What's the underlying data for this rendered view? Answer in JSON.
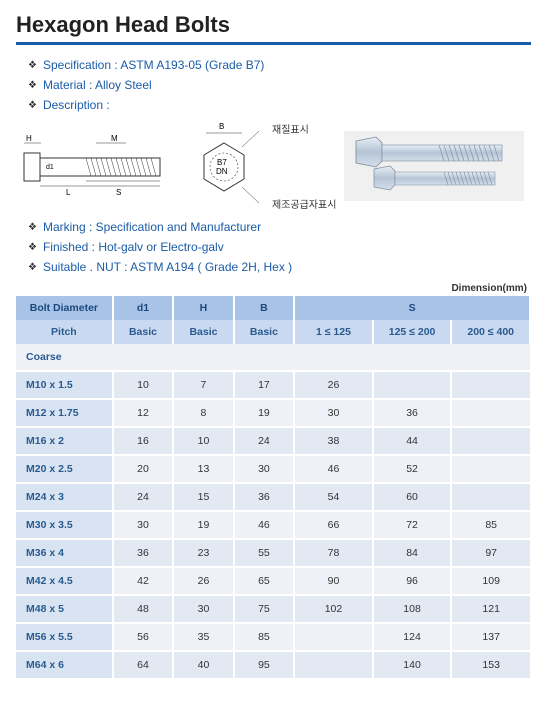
{
  "title": "Hexagon Head Bolts",
  "specs": [
    "Specification : ASTM A193-05 (Grade B7)",
    "Material : Alloy Steel",
    "Description :",
    "Marking : Specification and Manufacturer",
    "Finished : Hot-galv or Electro-galv",
    "Suitable . NUT : ASTM A194 ( Grade 2H, Hex )"
  ],
  "diagram": {
    "labels": {
      "H": "H",
      "M": "M",
      "d1": "d1",
      "L": "L",
      "S": "S",
      "B": "B",
      "B7": "B7",
      "DN": "DN"
    },
    "right1": "재질표시",
    "right2": "제조공급자표시"
  },
  "dimLabel": "Dimension(mm)",
  "table": {
    "header1": [
      "Bolt Diameter",
      "d1",
      "H",
      "B",
      "S"
    ],
    "header2": [
      "Pitch",
      "Basic",
      "Basic",
      "Basic",
      "1 ≤ 125",
      "125 ≤ 200",
      "200 ≤ 400"
    ],
    "coarseLabel": "Coarse",
    "rows": [
      [
        "M10 x 1.5",
        "10",
        "7",
        "17",
        "26",
        "",
        ""
      ],
      [
        "M12 x 1.75",
        "12",
        "8",
        "19",
        "30",
        "36",
        ""
      ],
      [
        "M16 x 2",
        "16",
        "10",
        "24",
        "38",
        "44",
        ""
      ],
      [
        "M20 x 2.5",
        "20",
        "13",
        "30",
        "46",
        "52",
        ""
      ],
      [
        "M24 x 3",
        "24",
        "15",
        "36",
        "54",
        "60",
        ""
      ],
      [
        "M30 x 3.5",
        "30",
        "19",
        "46",
        "66",
        "72",
        "85"
      ],
      [
        "M36 x 4",
        "36",
        "23",
        "55",
        "78",
        "84",
        "97"
      ],
      [
        "M42 x 4.5",
        "42",
        "26",
        "65",
        "90",
        "96",
        "109"
      ],
      [
        "M48 x 5",
        "48",
        "30",
        "75",
        "102",
        "108",
        "121"
      ],
      [
        "M56 x 5.5",
        "56",
        "35",
        "85",
        "",
        "124",
        "137"
      ],
      [
        "M64 x 6",
        "64",
        "40",
        "95",
        "",
        "140",
        "153"
      ]
    ]
  },
  "colors": {
    "accent": "#1a5ca8",
    "headerBg1": "#a9c3e6",
    "headerBg2": "#c9d9ef",
    "rowOdd": "#eef2f8",
    "rowEven": "#e2e9f3",
    "firstColBg": "#d9e4f2"
  }
}
